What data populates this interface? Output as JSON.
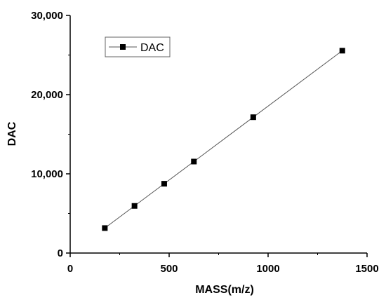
{
  "chart_data": {
    "type": "line",
    "title": "",
    "xlabel": "MASS(m/z)",
    "ylabel": "DAC",
    "xlim": [
      0,
      1500
    ],
    "ylim": [
      0,
      30000
    ],
    "x_ticks": [
      0,
      500,
      1000,
      1500
    ],
    "x_tick_labels": [
      "0",
      "500",
      "1000",
      "1500"
    ],
    "y_ticks": [
      0,
      10000,
      20000,
      30000
    ],
    "y_tick_labels": [
      "0",
      "10,000",
      "20,000",
      "30,000"
    ],
    "grid": false,
    "legend_position": "top-left",
    "series": [
      {
        "name": "DAC",
        "marker": "square",
        "color": "#000000",
        "line_color": "#555555",
        "x": [
          175,
          325,
          475,
          625,
          925,
          1375
        ],
        "y": [
          3150,
          5950,
          8750,
          11550,
          17150,
          25550
        ]
      }
    ]
  }
}
